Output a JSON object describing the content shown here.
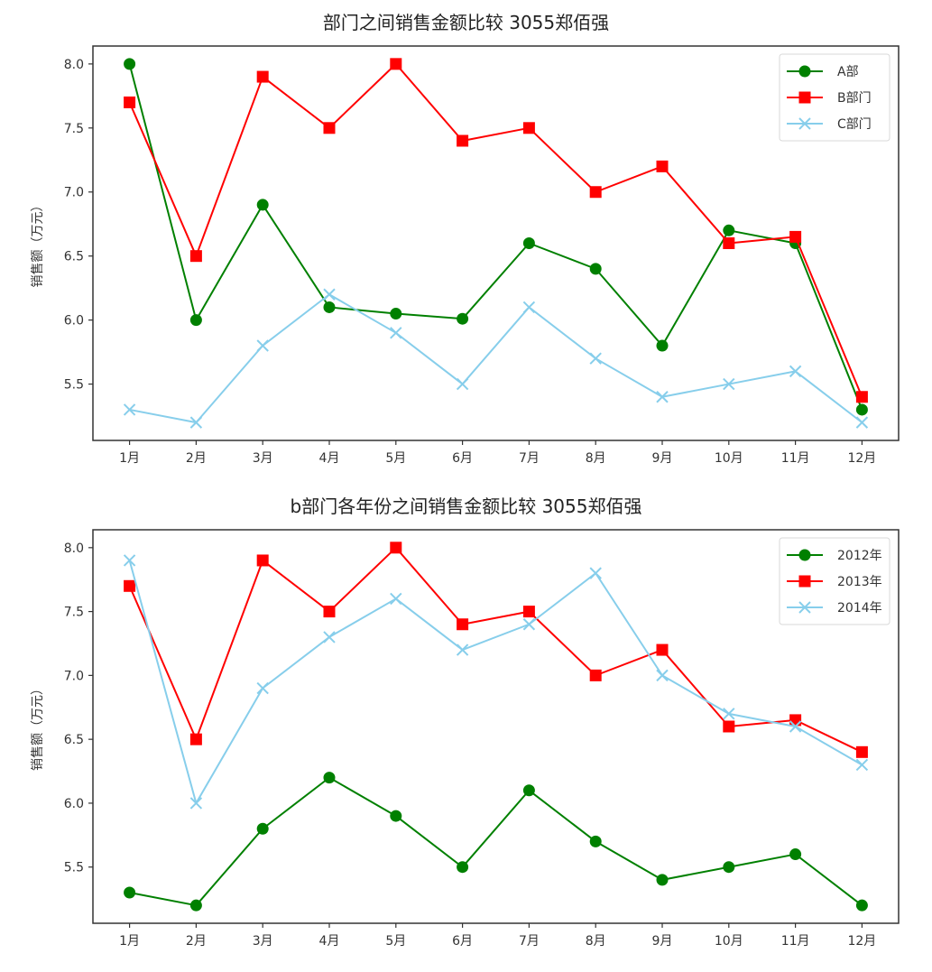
{
  "chart_data": [
    {
      "type": "line",
      "title": "部门之间销售金额比较 3055郑佰强",
      "xlabel": "",
      "ylabel": "销售额（万元）",
      "categories": [
        "1月",
        "2月",
        "3月",
        "4月",
        "5月",
        "6月",
        "7月",
        "8月",
        "9月",
        "10月",
        "11月",
        "12月"
      ],
      "ylim": [
        5.06,
        8.14
      ],
      "yticks": [
        "5.5",
        "6.0",
        "6.5",
        "7.0",
        "7.5",
        "8.0"
      ],
      "ytick_values": [
        5.5,
        6.0,
        6.5,
        7.0,
        7.5,
        8.0
      ],
      "grid": false,
      "legend_position": "top-right",
      "series": [
        {
          "name": "A部",
          "color": "#008000",
          "marker": "circle",
          "values": [
            8.0,
            6.0,
            6.9,
            6.1,
            6.05,
            6.01,
            6.6,
            6.4,
            5.8,
            6.7,
            6.6,
            5.3
          ]
        },
        {
          "name": "B部门",
          "color": "#ff0000",
          "marker": "square",
          "values": [
            7.7,
            6.5,
            7.9,
            7.5,
            8.0,
            7.4,
            7.5,
            7.0,
            7.2,
            6.6,
            6.65,
            5.4
          ]
        },
        {
          "name": "C部门",
          "color": "#87ceeb",
          "marker": "x",
          "values": [
            5.3,
            5.2,
            5.8,
            6.2,
            5.9,
            5.5,
            6.1,
            5.7,
            5.4,
            5.5,
            5.6,
            5.2
          ]
        }
      ]
    },
    {
      "type": "line",
      "title": "b部门各年份之间销售金额比较 3055郑佰强",
      "xlabel": "",
      "ylabel": "销售额（万元）",
      "categories": [
        "1月",
        "2月",
        "3月",
        "4月",
        "5月",
        "6月",
        "7月",
        "8月",
        "9月",
        "10月",
        "11月",
        "12月"
      ],
      "ylim": [
        5.06,
        8.14
      ],
      "yticks": [
        "5.5",
        "6.0",
        "6.5",
        "7.0",
        "7.5",
        "8.0"
      ],
      "ytick_values": [
        5.5,
        6.0,
        6.5,
        7.0,
        7.5,
        8.0
      ],
      "grid": false,
      "legend_position": "top-right",
      "series": [
        {
          "name": "2012年",
          "color": "#008000",
          "marker": "circle",
          "values": [
            5.3,
            5.2,
            5.8,
            6.2,
            5.9,
            5.5,
            6.1,
            5.7,
            5.4,
            5.5,
            5.6,
            5.2
          ]
        },
        {
          "name": "2013年",
          "color": "#ff0000",
          "marker": "square",
          "values": [
            7.7,
            6.5,
            7.9,
            7.5,
            8.0,
            7.4,
            7.5,
            7.0,
            7.2,
            6.6,
            6.65,
            6.4
          ]
        },
        {
          "name": "2014年",
          "color": "#87ceeb",
          "marker": "x",
          "values": [
            7.9,
            6.0,
            6.9,
            7.3,
            7.6,
            7.2,
            7.4,
            7.8,
            7.0,
            6.7,
            6.6,
            6.3
          ]
        }
      ]
    }
  ]
}
